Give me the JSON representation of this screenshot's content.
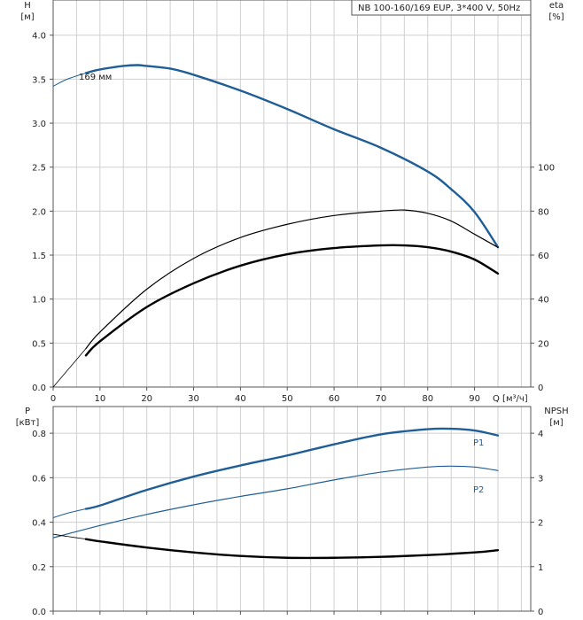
{
  "colors": {
    "blue": "#1f5e96",
    "black": "#000000",
    "grid": "#d0d0d0"
  },
  "chart_data": [
    {
      "type": "line",
      "title": "NB 100-160/169 EUP, 3*400 V, 50Hz",
      "x_ticks": [
        "0",
        "10",
        "20",
        "30",
        "40",
        "50",
        "60",
        "70",
        "80",
        "90"
      ],
      "xlabel": "Q [м³/ч]",
      "xlim": [
        0,
        102
      ],
      "ylabel_left": [
        "H",
        "[м]"
      ],
      "ylim_left": [
        0,
        4.4
      ],
      "y_ticks_left": [
        "0.0",
        "0.5",
        "1.0",
        "1.5",
        "2.0",
        "2.5",
        "3.0",
        "3.5",
        "4.0"
      ],
      "ylabel_right": [
        "eta",
        "[%]"
      ],
      "ylim_right": [
        0,
        176
      ],
      "y_ticks_right": [
        "0",
        "20",
        "40",
        "60",
        "80",
        "100"
      ],
      "grid": true,
      "series": [
        {
          "name": "169 мм",
          "axis": "left",
          "color": "blue",
          "width": 2.4,
          "x": [
            7,
            10,
            15,
            18,
            20,
            25,
            30,
            40,
            50,
            60,
            70,
            80,
            85,
            90,
            95
          ],
          "y": [
            3.57,
            3.61,
            3.65,
            3.66,
            3.65,
            3.62,
            3.55,
            3.37,
            3.16,
            2.93,
            2.72,
            2.45,
            2.25,
            1.99,
            1.59
          ]
        },
        {
          "axis": "left",
          "color": "blue",
          "width": 1,
          "x": [
            0,
            3,
            7
          ],
          "y": [
            3.42,
            3.5,
            3.57
          ]
        },
        {
          "axis": "right",
          "color": "black",
          "width": 1.2,
          "x": [
            7,
            10,
            20,
            30,
            40,
            50,
            60,
            70,
            75,
            80,
            85,
            90,
            95
          ],
          "y": [
            17.5,
            25,
            44.5,
            58.5,
            68,
            74,
            78,
            80,
            80.5,
            79,
            75.5,
            69.5,
            63.5
          ]
        },
        {
          "axis": "right",
          "color": "black",
          "width": 0.8,
          "x": [
            0,
            3,
            7
          ],
          "y": [
            0,
            7.5,
            17.5
          ]
        },
        {
          "axis": "left",
          "color": "black",
          "width": 2.4,
          "x": [
            7,
            10,
            20,
            30,
            40,
            50,
            60,
            70,
            75,
            80,
            85,
            90,
            95
          ],
          "y": [
            0.36,
            0.52,
            0.91,
            1.18,
            1.38,
            1.51,
            1.58,
            1.61,
            1.61,
            1.59,
            1.54,
            1.45,
            1.29
          ]
        }
      ]
    },
    {
      "type": "line",
      "x_ticks": [],
      "xlim": [
        0,
        102
      ],
      "ylabel_left": [
        "P",
        "[кВт]"
      ],
      "ylim_left": [
        0,
        0.92
      ],
      "y_ticks_left": [
        "0.0",
        "0.2",
        "0.4",
        "0.6",
        "0.8"
      ],
      "ylabel_right": [
        "NPSH",
        "[м]"
      ],
      "ylim_right": [
        0,
        4.6
      ],
      "y_ticks_right": [
        "0",
        "1",
        "2",
        "3",
        "4"
      ],
      "grid": true,
      "series": [
        {
          "name": "P1",
          "axis": "left",
          "color": "blue",
          "width": 2.4,
          "x": [
            7,
            10,
            20,
            30,
            40,
            50,
            60,
            70,
            80,
            85,
            90,
            95
          ],
          "y": [
            0.46,
            0.475,
            0.545,
            0.605,
            0.655,
            0.7,
            0.75,
            0.795,
            0.818,
            0.82,
            0.812,
            0.79
          ]
        },
        {
          "axis": "left",
          "color": "blue",
          "width": 1,
          "x": [
            0,
            3,
            7
          ],
          "y": [
            0.42,
            0.44,
            0.46
          ]
        },
        {
          "name": "P2",
          "axis": "left",
          "color": "blue",
          "width": 1.2,
          "x": [
            0,
            10,
            20,
            30,
            40,
            50,
            60,
            70,
            80,
            85,
            90,
            95
          ],
          "y": [
            0.33,
            0.385,
            0.435,
            0.478,
            0.516,
            0.55,
            0.59,
            0.625,
            0.648,
            0.652,
            0.648,
            0.632
          ]
        },
        {
          "axis": "right",
          "color": "black",
          "width": 2.4,
          "x": [
            7,
            10,
            20,
            30,
            40,
            50,
            60,
            70,
            80,
            90,
            95
          ],
          "y": [
            1.62,
            1.57,
            1.43,
            1.32,
            1.24,
            1.2,
            1.2,
            1.22,
            1.26,
            1.32,
            1.37
          ]
        },
        {
          "axis": "right",
          "color": "black",
          "width": 0.8,
          "x": [
            0,
            3,
            7
          ],
          "y": [
            1.73,
            1.68,
            1.62
          ]
        }
      ]
    }
  ]
}
